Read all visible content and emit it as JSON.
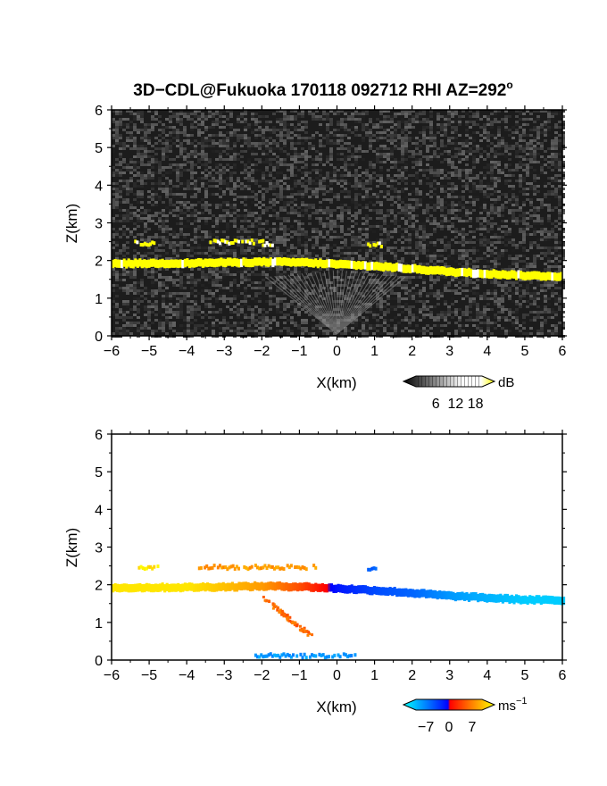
{
  "figure": {
    "title_main": "3D−CDL@Fukuoka 170118 092712 RHI AZ=292",
    "title_degree": "o"
  },
  "chart_data": [
    {
      "type": "heatmap",
      "name": "reflectivity panel (top)",
      "xlabel": "X(km)",
      "ylabel": "Z(km)",
      "xlim": [
        -6,
        6
      ],
      "ylim": [
        0,
        6
      ],
      "xticks": [
        "−6",
        "−5",
        "−4",
        "−3",
        "−2",
        "−1",
        "0",
        "1",
        "2",
        "3",
        "4",
        "5",
        "6"
      ],
      "yticks": [
        "0",
        "1",
        "2",
        "3",
        "4",
        "5",
        "6"
      ],
      "background": "noisy grayscale (low signal)",
      "colorbar": {
        "unit": "dB",
        "ticks": [
          "6",
          "12",
          "18"
        ],
        "tick_values": [
          6,
          12,
          18
        ],
        "range": [
          0,
          20
        ],
        "colors": [
          "#000000",
          "#ffffff",
          "#ffff00"
        ]
      },
      "features": [
        {
          "label": "main layer",
          "x": [
            -6,
            -4,
            -2,
            -1,
            0,
            1,
            2,
            3,
            4,
            5,
            6
          ],
          "z": [
            1.92,
            1.93,
            1.96,
            1.95,
            1.9,
            1.85,
            1.78,
            1.7,
            1.65,
            1.6,
            1.58
          ],
          "thickness_km": 0.22
        },
        {
          "label": "upper patch",
          "x_range": [
            -3.4,
            -2.0
          ],
          "z": 2.48
        },
        {
          "label": "upper patch",
          "x_range": [
            -5.4,
            -4.9
          ],
          "z": 2.45
        },
        {
          "label": "upper patch",
          "x_range": [
            -2.0,
            -1.7
          ],
          "z": 2.42
        },
        {
          "label": "upper patch",
          "x_range": [
            0.8,
            1.2
          ],
          "z": 2.4
        }
      ]
    },
    {
      "type": "heatmap",
      "name": "Doppler velocity panel (bottom)",
      "xlabel": "X(km)",
      "ylabel": "Z(km)",
      "xlim": [
        -6,
        6
      ],
      "ylim": [
        0,
        6
      ],
      "xticks": [
        "−6",
        "−5",
        "−4",
        "−3",
        "−2",
        "−1",
        "0",
        "1",
        "2",
        "3",
        "4",
        "5",
        "6"
      ],
      "yticks": [
        "0",
        "1",
        "2",
        "3",
        "4",
        "5",
        "6"
      ],
      "background": "white (masked)",
      "colorbar": {
        "unit": "ms",
        "unit_exponent": "−1",
        "ticks": [
          "−7",
          "0",
          "7"
        ],
        "tick_values": [
          -7,
          0,
          7
        ],
        "range": [
          -10,
          10
        ],
        "colors": [
          "#00ffff",
          "#0080ff",
          "#0000ff",
          "#ff0000",
          "#ff8000",
          "#ffff00"
        ]
      },
      "features": [
        {
          "label": "main layer",
          "x": [
            -6,
            -4,
            -2,
            -1,
            0,
            1,
            2,
            3,
            4,
            5,
            6
          ],
          "z": [
            1.92,
            1.93,
            1.96,
            1.95,
            1.9,
            1.85,
            1.78,
            1.7,
            1.65,
            1.6,
            1.58
          ],
          "velocity_ms": [
            9,
            9,
            6,
            3,
            -1,
            -3,
            -4,
            -6,
            -7,
            -8,
            -8
          ]
        },
        {
          "label": "upper patch",
          "x_range": [
            -3.7,
            -0.6
          ],
          "z": 2.45,
          "velocity_ms": 6
        },
        {
          "label": "upper patch",
          "x_range": [
            -5.3,
            -4.8
          ],
          "z": 2.45,
          "velocity_ms": 9
        },
        {
          "label": "upper patch",
          "x_range": [
            0.8,
            1.2
          ],
          "z": 2.42,
          "velocity_ms": -4
        },
        {
          "label": "fall streak",
          "x_range": [
            -2.0,
            -0.7
          ],
          "z_range": [
            0.65,
            1.7
          ],
          "velocity_ms": 4
        },
        {
          "label": "near-surface",
          "x_range": [
            -2.2,
            0.5
          ],
          "z": 0.1,
          "velocity_ms": -6
        }
      ]
    }
  ]
}
